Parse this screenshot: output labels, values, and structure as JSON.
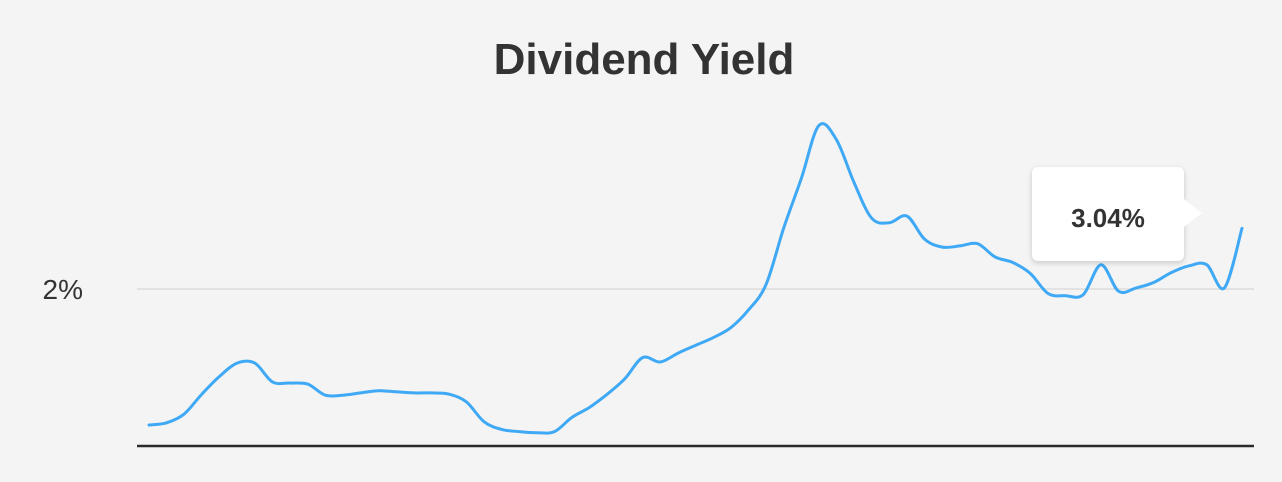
{
  "chart_data": {
    "type": "line",
    "title": "Dividend Yield",
    "xlabel": "",
    "ylabel": "",
    "ylim": [
      0.58,
      3.62
    ],
    "yticks": [
      {
        "value": 2,
        "label": "2%"
      }
    ],
    "grid": true,
    "series": [
      {
        "color": "#3fa9f5",
        "values": [
          0.77,
          0.79,
          0.87,
          1.05,
          1.21,
          1.33,
          1.33,
          1.16,
          1.15,
          1.14,
          1.04,
          1.04,
          1.06,
          1.08,
          1.07,
          1.06,
          1.06,
          1.05,
          0.98,
          0.8,
          0.73,
          0.71,
          0.7,
          0.71,
          0.84,
          0.93,
          1.05,
          1.19,
          1.38,
          1.34,
          1.42,
          1.49,
          1.56,
          1.65,
          1.81,
          2.04,
          2.55,
          3.0,
          3.48,
          3.35,
          2.96,
          2.64,
          2.6,
          2.66,
          2.45,
          2.38,
          2.39,
          2.41,
          2.29,
          2.24,
          2.14,
          1.96,
          1.94,
          1.95,
          2.22,
          1.98,
          2.01,
          2.06,
          2.15,
          2.21,
          2.22,
          2.01,
          2.55
        ]
      }
    ],
    "tooltip": {
      "label": "3.04%"
    }
  },
  "colors": {
    "background": "#f4f4f4",
    "line": "#3fa9f5",
    "gridline": "#e2e2e2",
    "axis": "#2b2b2b",
    "text": "#333333"
  }
}
